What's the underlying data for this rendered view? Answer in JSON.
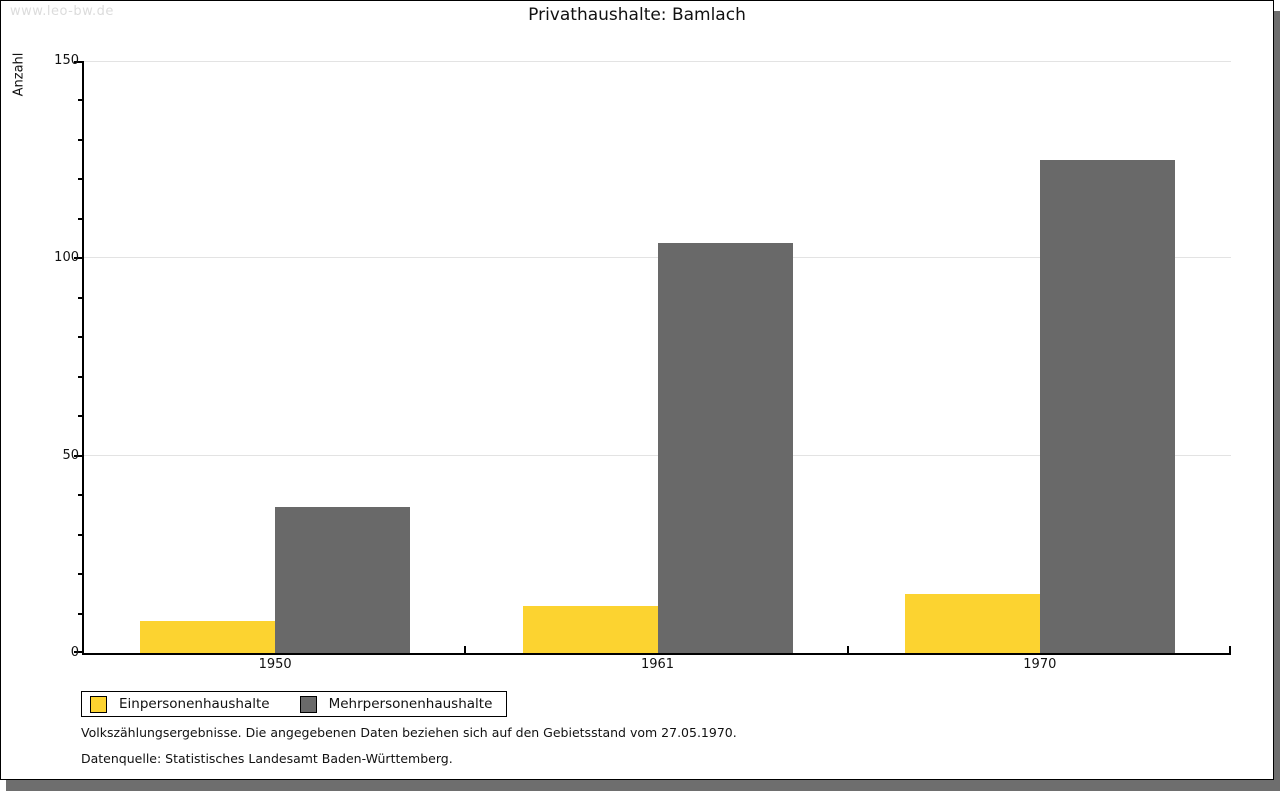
{
  "watermark": "www.leo-bw.de",
  "title": "Privathaushalte: Bamlach",
  "chart_data": {
    "type": "bar",
    "title": "Privathaushalte: Bamlach",
    "categories": [
      "1950",
      "1961",
      "1970"
    ],
    "series": [
      {
        "name": "Einpersonenhaushalte",
        "color": "#fcd330",
        "values": [
          8,
          12,
          15
        ]
      },
      {
        "name": "Mehrpersonenhaushalte",
        "color": "#696969",
        "values": [
          37,
          104,
          125
        ]
      }
    ],
    "xlabel": "",
    "ylabel": "Anzahl",
    "ylim": [
      0,
      150
    ],
    "y_major_step": 50,
    "y_minor_step": 10,
    "grid": true,
    "gridline_color": "#e3e3e3",
    "legend_position": "bottom-left"
  },
  "legend": {
    "items": [
      {
        "label": "Einpersonenhaushalte",
        "color": "#fcd330"
      },
      {
        "label": "Mehrpersonenhaushalte",
        "color": "#696969"
      }
    ]
  },
  "footnotes": [
    "Volkszählungsergebnisse. Die angegebenen Daten beziehen sich auf den Gebietsstand vom 27.05.1970.",
    "Datenquelle: Statistisches Landesamt Baden-Württemberg."
  ],
  "colors": {
    "bar_yellow": "#fcd330",
    "bar_gray": "#696969",
    "shadow": "#6e6e6e",
    "gridline": "#e3e3e3",
    "watermark": "#dcdcdc",
    "frame": "#000000"
  }
}
